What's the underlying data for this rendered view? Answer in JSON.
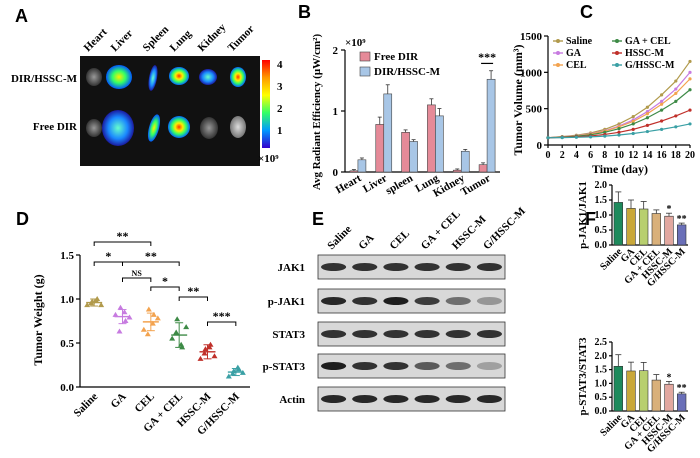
{
  "panels": {
    "A": "A",
    "B": "B",
    "C": "C",
    "D": "D",
    "E": "E",
    "F": "F"
  },
  "panel_a": {
    "organs": [
      "Heart",
      "Liver",
      "Spleen",
      "Lung",
      "Kidney",
      "Tumor"
    ],
    "rows": [
      "DIR/HSSC-M",
      "Free DIR"
    ],
    "colorbar_ticks": [
      "4",
      "3",
      "2",
      "1"
    ],
    "colorbar_unit": "×10⁹"
  },
  "chart_data": [
    {
      "id": "B",
      "type": "bar",
      "title": "",
      "ylabel": "Avg Radiant Efficiency (μW/cm²)",
      "yscale_label": "×10⁹",
      "categories": [
        "Heart",
        "Liver",
        "spleen",
        "Lung",
        "Kidney",
        "Tumor"
      ],
      "ylim": [
        0,
        2
      ],
      "yticks": [
        "0",
        "1",
        "2"
      ],
      "series": [
        {
          "name": "Free DIR",
          "color": "#e58a98",
          "values": [
            0.02,
            0.78,
            0.65,
            1.1,
            0.03,
            0.12
          ]
        },
        {
          "name": "DIR/HSSC-M",
          "color": "#a8c6e6",
          "values": [
            0.2,
            1.28,
            0.5,
            0.92,
            0.34,
            1.52
          ]
        }
      ],
      "errors": [
        [
          0.02,
          0.12,
          0.04,
          0.1,
          0.02,
          0.03
        ],
        [
          0.03,
          0.15,
          0.03,
          0.12,
          0.03,
          0.14
        ]
      ],
      "annotation": "***"
    },
    {
      "id": "C",
      "type": "line",
      "ylabel": "Tumor Volume (mm³)",
      "xlabel": "Time (day)",
      "x": [
        0,
        2,
        4,
        6,
        8,
        10,
        12,
        14,
        16,
        18,
        20
      ],
      "xticks": [
        "0",
        "2",
        "4",
        "6",
        "8",
        "10",
        "12",
        "14",
        "16",
        "18",
        "20"
      ],
      "yticks": [
        "0",
        "500",
        "1000",
        "1500"
      ],
      "ylim": [
        0,
        1500
      ],
      "series": [
        {
          "name": "Saline",
          "color": "#b19a4c",
          "values": [
            100,
            115,
            135,
            165,
            215,
            290,
            390,
            520,
            690,
            880,
            1150
          ]
        },
        {
          "name": "GA",
          "color": "#c77be0",
          "values": [
            100,
            112,
            128,
            155,
            195,
            260,
            345,
            460,
            600,
            770,
            1000
          ]
        },
        {
          "name": "CEL",
          "color": "#f3a34f",
          "values": [
            100,
            110,
            125,
            150,
            190,
            250,
            325,
            430,
            560,
            710,
            910
          ]
        },
        {
          "name": "GA + CEL",
          "color": "#3d8a46",
          "values": [
            100,
            108,
            120,
            140,
            175,
            225,
            290,
            375,
            480,
            600,
            760
          ]
        },
        {
          "name": "HSSC-M",
          "color": "#c0302a",
          "values": [
            100,
            105,
            112,
            125,
            145,
            175,
            215,
            270,
            330,
            400,
            480
          ]
        },
        {
          "name": "G/HSSC-M",
          "color": "#3aa0a5",
          "values": [
            100,
            102,
            106,
            112,
            122,
            138,
            158,
            185,
            215,
            250,
            290
          ]
        }
      ]
    },
    {
      "id": "D",
      "type": "scatter",
      "ylabel": "Tumor Weight (g)",
      "categories": [
        "Saline",
        "GA",
        "CEL",
        "GA + CEL",
        "HSSC-M",
        "G/HSSC-M"
      ],
      "ylim": [
        0.0,
        1.5
      ],
      "yticks": [
        "0.0",
        "0.5",
        "1.0",
        "1.5"
      ],
      "colors": [
        "#b19a4c",
        "#c77be0",
        "#f3a34f",
        "#3d8a46",
        "#c0302a",
        "#3aa0a5"
      ],
      "means": [
        0.96,
        0.8,
        0.74,
        0.59,
        0.4,
        0.17
      ],
      "sd": [
        0.04,
        0.08,
        0.1,
        0.14,
        0.08,
        0.04
      ],
      "points": [
        [
          0.93,
          0.97,
          1.0,
          0.95,
          0.98,
          0.93
        ],
        [
          0.82,
          0.9,
          0.75,
          0.63,
          0.85,
          0.79
        ],
        [
          0.65,
          0.88,
          0.82,
          0.6,
          0.72,
          0.78
        ],
        [
          0.55,
          0.77,
          0.45,
          0.62,
          0.48,
          0.68
        ],
        [
          0.32,
          0.43,
          0.48,
          0.38,
          0.45,
          0.35
        ],
        [
          0.12,
          0.18,
          0.2,
          0.15,
          0.22,
          0.16
        ]
      ],
      "sig": [
        {
          "label": "**"
        },
        {
          "label": "**"
        },
        {
          "label": "*"
        },
        {
          "label": "NS"
        },
        {
          "label": "*"
        },
        {
          "label": "**"
        },
        {
          "label": "***"
        }
      ]
    },
    {
      "id": "F1",
      "type": "bar",
      "ylabel": "p-JAK1/JAK1",
      "categories": [
        "Saline",
        "GA",
        "CEL",
        "GA + CEL",
        "HSSC-M",
        "G/HSSC-M"
      ],
      "ylim": [
        0.0,
        2.0
      ],
      "yticks": [
        "0.0",
        "0.5",
        "1.0",
        "1.5",
        "2.0"
      ],
      "colors": [
        "#1e8a5c",
        "#c9a83a",
        "#b8cf6e",
        "#d9b07a",
        "#e2a8a0",
        "#6a6fb8"
      ],
      "values": [
        1.42,
        1.22,
        1.2,
        1.05,
        0.96,
        0.67
      ],
      "errors": [
        0.35,
        0.28,
        0.25,
        0.12,
        0.1,
        0.06
      ],
      "sig": [
        "",
        "",
        "",
        "",
        "*",
        "**"
      ]
    },
    {
      "id": "F2",
      "type": "bar",
      "ylabel": "p-STAT3/STAT3",
      "categories": [
        "Saline",
        "GA",
        "CEL",
        "GA + CEL",
        "HSSC-M",
        "G/HSSC-M"
      ],
      "ylim": [
        0.0,
        2.5
      ],
      "yticks": [
        "0.0",
        "0.5",
        "1.0",
        "1.5",
        "2.0",
        "2.5"
      ],
      "colors": [
        "#1e8a5c",
        "#c9a83a",
        "#b8cf6e",
        "#d9b07a",
        "#e2a8a0",
        "#6a6fb8"
      ],
      "values": [
        1.62,
        1.45,
        1.46,
        1.12,
        0.97,
        0.62
      ],
      "errors": [
        0.42,
        0.32,
        0.3,
        0.2,
        0.1,
        0.06
      ],
      "sig": [
        "",
        "",
        "",
        "",
        "*",
        "**"
      ]
    }
  ],
  "panel_e": {
    "lanes": [
      "Saline",
      "GA",
      "CEL",
      "GA + CEL",
      "HSSC-M",
      "G/HSSC-M"
    ],
    "rows": [
      {
        "label": "JAK1",
        "intensity": [
          0.85,
          0.85,
          0.85,
          0.85,
          0.85,
          0.85
        ]
      },
      {
        "label": "p-JAK1",
        "intensity": [
          0.9,
          0.85,
          0.95,
          0.8,
          0.55,
          0.35
        ]
      },
      {
        "label": "STAT3",
        "intensity": [
          0.85,
          0.85,
          0.85,
          0.85,
          0.85,
          0.85
        ]
      },
      {
        "label": "p-STAT3",
        "intensity": [
          0.95,
          0.85,
          0.85,
          0.65,
          0.55,
          0.3
        ]
      },
      {
        "label": "Actin",
        "intensity": [
          0.9,
          0.9,
          0.9,
          0.9,
          0.9,
          0.9
        ]
      }
    ]
  }
}
